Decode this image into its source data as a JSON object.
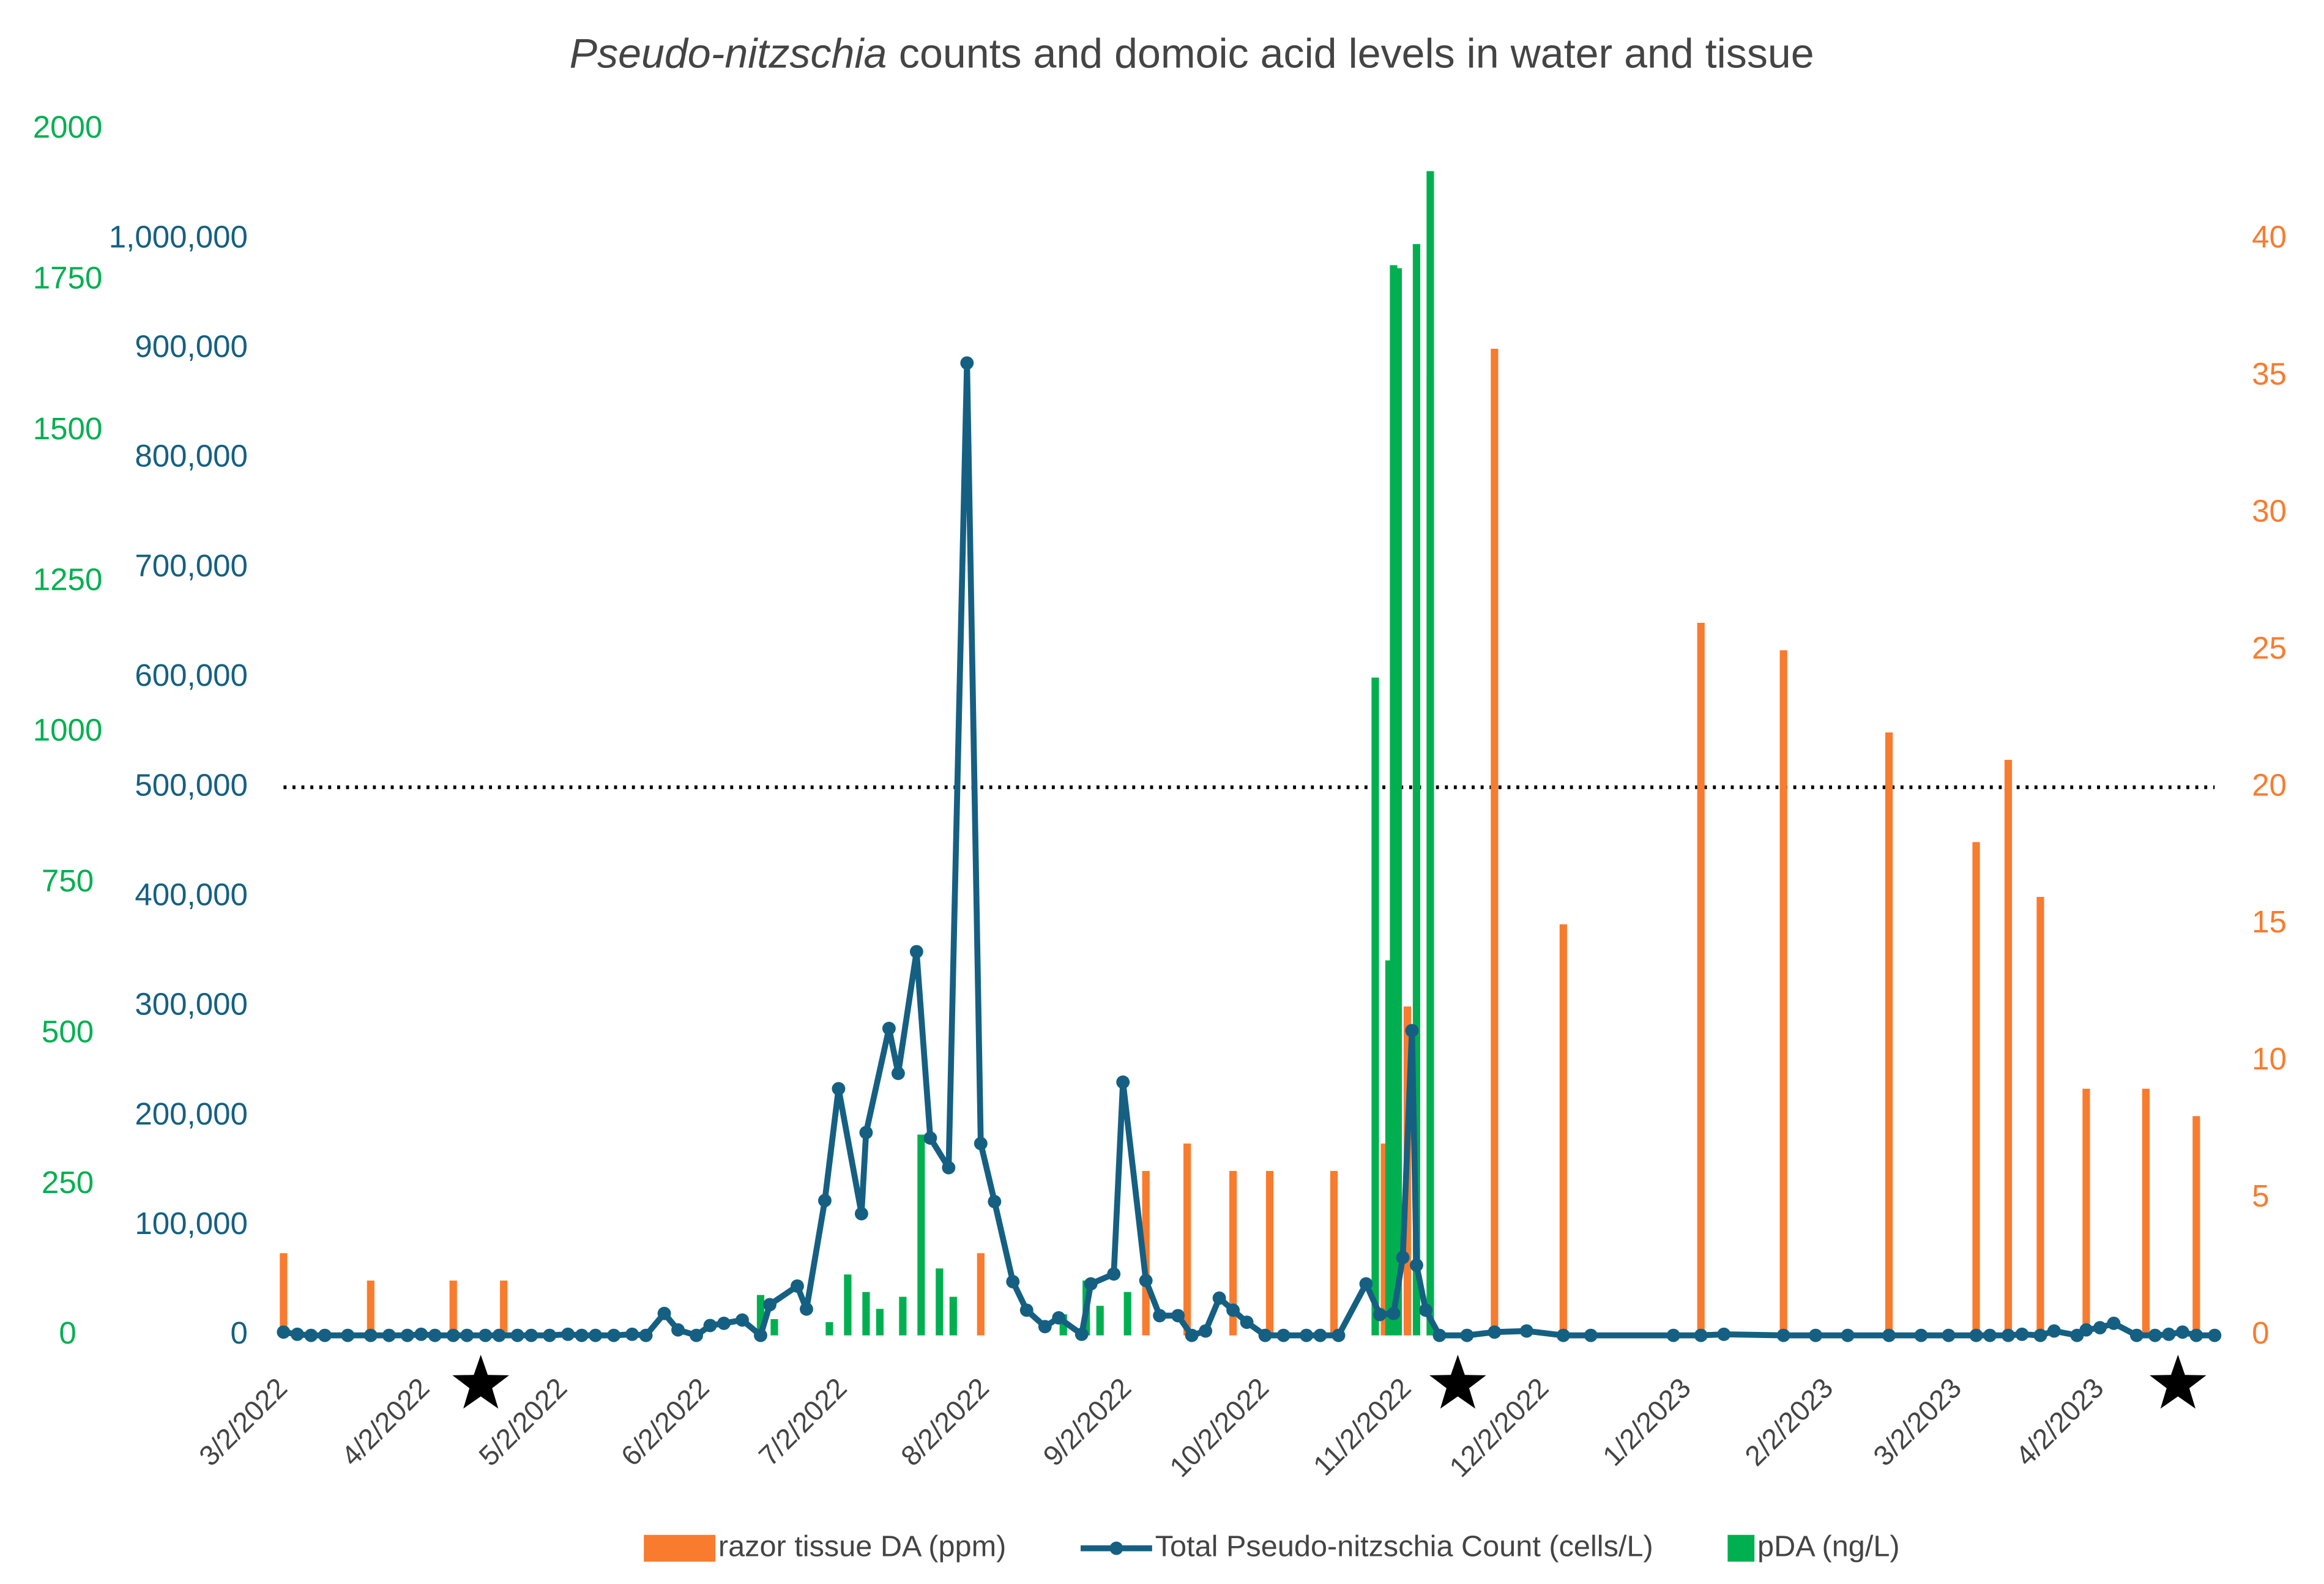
{
  "chart_data": {
    "type": "combo",
    "title": [
      "Pseudo-nitzschia",
      "counts and domoic acid levels in water and tissue"
    ],
    "xlim": [
      "2022-03-02",
      "2023-04-27"
    ],
    "xticks": [
      {
        "value": "2022-03-02",
        "label": "3/2/2022"
      },
      {
        "value": "2022-04-02",
        "label": "4/2/2022"
      },
      {
        "value": "2022-05-02",
        "label": "5/2/2022"
      },
      {
        "value": "2022-06-02",
        "label": "6/2/2022"
      },
      {
        "value": "2022-07-02",
        "label": "7/2/2022"
      },
      {
        "value": "2022-08-02",
        "label": "8/2/2022"
      },
      {
        "value": "2022-09-02",
        "label": "9/2/2022"
      },
      {
        "value": "2022-10-02",
        "label": "10/2/2022"
      },
      {
        "value": "2022-11-02",
        "label": "11/2/2022"
      },
      {
        "value": "2022-12-02",
        "label": "12/2/2022"
      },
      {
        "value": "2023-01-02",
        "label": "1/2/2023"
      },
      {
        "value": "2023-02-02",
        "label": "2/2/2023"
      },
      {
        "value": "2023-03-02",
        "label": "3/2/2023"
      },
      {
        "value": "2023-04-02",
        "label": "4/2/2023"
      }
    ],
    "ylim": [
      0,
      1100000
    ],
    "yticks": [
      0,
      {
        "value": 100000,
        "label": "100,000"
      },
      {
        "value": 200000,
        "label": "200,000"
      },
      {
        "value": 300000,
        "label": "300,000"
      },
      {
        "value": 400000,
        "label": "400,000"
      },
      {
        "value": 500000,
        "label": "500,000"
      },
      {
        "value": 600000,
        "label": "600,000"
      },
      {
        "value": 700000,
        "label": "700,000"
      },
      {
        "value": 800000,
        "label": "800,000"
      },
      {
        "value": 900000,
        "label": "900,000"
      },
      {
        "value": 1000000,
        "label": "1,000,000"
      }
    ],
    "y2lim": [
      0,
      44
    ],
    "y2ticks": [
      0,
      5,
      10,
      15,
      20,
      25,
      30,
      35,
      40
    ],
    "y3lim": [
      0,
      2000
    ],
    "y3ticks": [
      0,
      250,
      500,
      750,
      1000,
      1250,
      1500,
      1750,
      2000
    ],
    "reference_line": {
      "value": 20,
      "axis": "y2"
    },
    "stars": [
      "2022-04-14",
      "2022-11-13",
      "2023-04-19"
    ],
    "legend": "bottom",
    "series": [
      {
        "name": "razor tissue DA (ppm)",
        "type": "bar",
        "axis": "y2",
        "color": "#f97b2e",
        "x": [
          "2022-03-02",
          "2022-03-21",
          "2022-04-08",
          "2022-04-19",
          "2022-08-01",
          "2022-09-06",
          "2022-09-15",
          "2022-09-25",
          "2022-10-03",
          "2022-10-17",
          "2022-10-28",
          "2022-11-02",
          "2022-11-07",
          "2022-11-21",
          "2022-12-06",
          "2023-01-05",
          "2023-01-23",
          "2023-02-15",
          "2023-03-06",
          "2023-03-13",
          "2023-03-20",
          "2023-03-30",
          "2023-04-12",
          "2023-04-23"
        ],
        "values": [
          3,
          2,
          2,
          2,
          3,
          6,
          7,
          6,
          6,
          6,
          7,
          12,
          35,
          36,
          15,
          26,
          25,
          22,
          18,
          21,
          16,
          9,
          9,
          8
        ]
      },
      {
        "name": "Total Pseudo-nitzschia Count (cells/L)",
        "type": "line",
        "axis": "y",
        "color": "#156082",
        "x": [
          "2022-03-02",
          "2022-03-05",
          "2022-03-08",
          "2022-03-11",
          "2022-03-16",
          "2022-03-21",
          "2022-03-25",
          "2022-03-29",
          "2022-04-01",
          "2022-04-04",
          "2022-04-08",
          "2022-04-11",
          "2022-04-15",
          "2022-04-18",
          "2022-04-22",
          "2022-04-25",
          "2022-04-29",
          "2022-05-03",
          "2022-05-06",
          "2022-05-09",
          "2022-05-13",
          "2022-05-17",
          "2022-05-20",
          "2022-05-24",
          "2022-05-27",
          "2022-05-31",
          "2022-06-03",
          "2022-06-06",
          "2022-06-10",
          "2022-06-14",
          "2022-06-16",
          "2022-06-22",
          "2022-06-24",
          "2022-06-28",
          "2022-07-01",
          "2022-07-06",
          "2022-07-07",
          "2022-07-12",
          "2022-07-14",
          "2022-07-18",
          "2022-07-21",
          "2022-07-25",
          "2022-07-29",
          "2022-08-01",
          "2022-08-04",
          "2022-08-08",
          "2022-08-11",
          "2022-08-15",
          "2022-08-18",
          "2022-08-23",
          "2022-08-25",
          "2022-08-30",
          "2022-09-01",
          "2022-09-06",
          "2022-09-09",
          "2022-09-13",
          "2022-09-16",
          "2022-09-19",
          "2022-09-22",
          "2022-09-25",
          "2022-09-28",
          "2022-10-02",
          "2022-10-06",
          "2022-10-11",
          "2022-10-14",
          "2022-10-18",
          "2022-10-24",
          "2022-10-27",
          "2022-10-30",
          "2022-11-01",
          "2022-11-03",
          "2022-11-04",
          "2022-11-06",
          "2022-11-09",
          "2022-11-15",
          "2022-11-21",
          "2022-11-28",
          "2022-12-06",
          "2022-12-12",
          "2022-12-30",
          "2023-01-05",
          "2023-01-10",
          "2023-01-23",
          "2023-01-30",
          "2023-02-06",
          "2023-02-15",
          "2023-02-22",
          "2023-02-28",
          "2023-03-06",
          "2023-03-09",
          "2023-03-13",
          "2023-03-16",
          "2023-03-20",
          "2023-03-23",
          "2023-03-28",
          "2023-03-30",
          "2023-04-02",
          "2023-04-05",
          "2023-04-10",
          "2023-04-14",
          "2023-04-17",
          "2023-04-20",
          "2023-04-23",
          "2023-04-27"
        ],
        "values": [
          3000,
          1000,
          0,
          0,
          0,
          0,
          0,
          0,
          1000,
          0,
          0,
          0,
          0,
          0,
          0,
          0,
          0,
          1000,
          0,
          0,
          0,
          1000,
          0,
          20000,
          5000,
          0,
          9000,
          11000,
          14000,
          0,
          28000,
          45000,
          24000,
          123000,
          225000,
          111000,
          185000,
          280000,
          239000,
          350000,
          180000,
          153000,
          887000,
          175000,
          122000,
          49000,
          23000,
          8000,
          16000,
          1000,
          47000,
          56000,
          231000,
          50000,
          18000,
          18000,
          0,
          4000,
          34000,
          23000,
          12000,
          0,
          0,
          0,
          0,
          0,
          47000,
          19000,
          20000,
          71000,
          278000,
          64000,
          23000,
          0,
          0,
          3000,
          4000,
          0,
          0,
          0,
          0,
          1000,
          0,
          0,
          0,
          0,
          0,
          0,
          0,
          0,
          0,
          1000,
          0,
          4000,
          0,
          5000,
          7000,
          11000,
          0,
          0,
          1000,
          3000,
          0,
          0
        ]
      },
      {
        "name": "pDA (ng/L)",
        "type": "bar",
        "axis": "y3",
        "color": "#00b050",
        "x": [
          "2022-06-14",
          "2022-06-17",
          "2022-06-29",
          "2022-07-03",
          "2022-07-07",
          "2022-07-10",
          "2022-07-15",
          "2022-07-19",
          "2022-07-23",
          "2022-07-26",
          "2022-08-19",
          "2022-08-24",
          "2022-08-27",
          "2022-09-02",
          "2022-10-26",
          "2022-10-29",
          "2022-10-30",
          "2022-10-31",
          "2022-11-04",
          "2022-11-07"
        ],
        "values": [
          67,
          27,
          22,
          101,
          72,
          44,
          64,
          333,
          111,
          64,
          35,
          91,
          49,
          72,
          1091,
          622,
          1775,
          1770,
          1810,
          1931
        ]
      }
    ]
  }
}
